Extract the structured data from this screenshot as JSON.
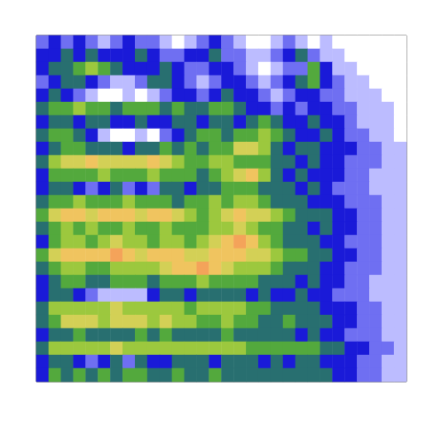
{
  "chart_data": {
    "type": "heatmap",
    "tick_labels": false,
    "grid": false,
    "cells": [
      [
        2,
        3,
        2,
        3,
        2,
        1,
        2,
        3,
        2,
        2,
        1,
        0,
        1,
        2,
        3,
        2,
        1,
        0,
        0,
        1,
        2,
        1,
        0,
        1,
        0,
        0,
        0,
        0,
        0,
        0
      ],
      [
        3,
        3,
        4,
        3,
        4,
        3,
        3,
        3,
        4,
        3,
        2,
        2,
        3,
        3,
        4,
        2,
        2,
        1,
        1,
        2,
        3,
        4,
        2,
        1,
        1,
        0,
        0,
        0,
        0,
        0
      ],
      [
        3,
        4,
        4,
        5,
        6,
        5,
        4,
        3,
        3,
        3,
        4,
        3,
        2,
        2,
        3,
        3,
        2,
        1,
        0,
        1,
        2,
        2,
        5,
        3,
        1,
        1,
        0,
        0,
        0,
        0
      ],
      [
        2,
        3,
        4,
        4,
        3,
        2,
        1,
        1,
        2,
        4,
        4,
        3,
        2,
        1,
        2,
        3,
        3,
        2,
        1,
        2,
        3,
        4,
        5,
        3,
        2,
        1,
        1,
        0,
        0,
        0
      ],
      [
        3,
        4,
        3,
        2,
        1,
        0,
        0,
        1,
        0,
        1,
        2,
        3,
        3,
        2,
        3,
        4,
        3,
        3,
        2,
        1,
        2,
        3,
        3,
        2,
        2,
        1,
        1,
        1,
        0,
        0
      ],
      [
        4,
        5,
        5,
        6,
        5,
        5,
        4,
        5,
        5,
        5,
        4,
        5,
        4,
        4,
        5,
        5,
        4,
        3,
        3,
        2,
        3,
        2,
        3,
        3,
        2,
        2,
        1,
        1,
        1,
        0
      ],
      [
        3,
        4,
        4,
        3,
        4,
        4,
        3,
        3,
        4,
        3,
        3,
        4,
        4,
        3,
        4,
        4,
        3,
        4,
        5,
        4,
        3,
        3,
        4,
        3,
        3,
        2,
        1,
        1,
        1,
        0
      ],
      [
        4,
        5,
        5,
        4,
        3,
        1,
        0,
        0,
        1,
        0,
        2,
        3,
        4,
        5,
        5,
        4,
        5,
        5,
        6,
        5,
        4,
        3,
        3,
        4,
        3,
        2,
        2,
        1,
        1,
        0
      ],
      [
        3,
        4,
        5,
        5,
        4,
        4,
        4,
        3,
        4,
        4,
        5,
        4,
        5,
        4,
        5,
        5,
        7,
        7,
        6,
        4,
        3,
        4,
        4,
        3,
        3,
        3,
        2,
        2,
        1,
        1
      ],
      [
        4,
        6,
        7,
        7,
        8,
        7,
        7,
        7,
        7,
        8,
        7,
        6,
        5,
        5,
        6,
        6,
        5,
        5,
        5,
        4,
        4,
        3,
        4,
        3,
        3,
        2,
        2,
        2,
        1,
        1
      ],
      [
        3,
        5,
        5,
        5,
        5,
        6,
        5,
        5,
        5,
        6,
        5,
        5,
        5,
        4,
        5,
        6,
        7,
        8,
        6,
        4,
        3,
        4,
        3,
        3,
        3,
        2,
        2,
        1,
        1,
        1
      ],
      [
        3,
        4,
        4,
        3,
        2,
        3,
        4,
        2,
        3,
        2,
        4,
        4,
        3,
        4,
        4,
        5,
        5,
        5,
        4,
        4,
        4,
        3,
        4,
        3,
        2,
        2,
        2,
        1,
        1,
        1
      ],
      [
        4,
        5,
        5,
        6,
        5,
        5,
        5,
        6,
        5,
        5,
        5,
        4,
        5,
        5,
        6,
        5,
        6,
        6,
        5,
        4,
        4,
        4,
        3,
        3,
        3,
        2,
        2,
        2,
        1,
        1
      ],
      [
        5,
        7,
        8,
        8,
        7,
        8,
        8,
        8,
        7,
        8,
        8,
        7,
        6,
        5,
        6,
        7,
        8,
        7,
        7,
        6,
        5,
        4,
        4,
        4,
        3,
        3,
        2,
        2,
        1,
        1
      ],
      [
        4,
        5,
        6,
        5,
        6,
        5,
        5,
        6,
        5,
        5,
        6,
        5,
        5,
        5,
        6,
        6,
        7,
        6,
        5,
        5,
        4,
        4,
        3,
        4,
        3,
        3,
        2,
        2,
        1,
        1
      ],
      [
        3,
        5,
        6,
        6,
        5,
        6,
        7,
        6,
        6,
        5,
        6,
        6,
        5,
        6,
        7,
        8,
        9,
        8,
        6,
        5,
        4,
        4,
        4,
        3,
        3,
        2,
        2,
        2,
        1,
        1
      ],
      [
        5,
        7,
        8,
        8,
        8,
        8,
        9,
        8,
        7,
        8,
        8,
        8,
        7,
        7,
        8,
        8,
        8,
        7,
        7,
        6,
        5,
        5,
        4,
        4,
        3,
        3,
        2,
        2,
        1,
        1
      ],
      [
        4,
        5,
        6,
        6,
        5,
        5,
        6,
        6,
        6,
        6,
        7,
        8,
        8,
        9,
        8,
        7,
        6,
        6,
        6,
        5,
        4,
        4,
        4,
        3,
        3,
        2,
        2,
        2,
        1,
        1
      ],
      [
        3,
        4,
        5,
        5,
        4,
        4,
        5,
        5,
        5,
        4,
        5,
        5,
        5,
        6,
        5,
        5,
        5,
        5,
        4,
        4,
        4,
        3,
        4,
        3,
        3,
        2,
        2,
        1,
        1,
        1
      ],
      [
        3,
        4,
        4,
        3,
        2,
        1,
        1,
        1,
        1,
        3,
        4,
        4,
        3,
        4,
        4,
        4,
        4,
        3,
        4,
        3,
        3,
        4,
        3,
        3,
        2,
        2,
        2,
        1,
        1,
        1
      ],
      [
        4,
        6,
        6,
        6,
        6,
        6,
        7,
        6,
        6,
        6,
        6,
        6,
        5,
        6,
        6,
        6,
        6,
        5,
        5,
        4,
        4,
        4,
        4,
        3,
        3,
        3,
        2,
        2,
        1,
        1
      ],
      [
        4,
        5,
        7,
        7,
        7,
        6,
        7,
        7,
        7,
        6,
        7,
        6,
        6,
        5,
        5,
        6,
        5,
        5,
        4,
        4,
        5,
        4,
        4,
        4,
        3,
        3,
        2,
        2,
        1,
        1
      ],
      [
        3,
        4,
        4,
        5,
        4,
        4,
        4,
        4,
        5,
        4,
        5,
        4,
        4,
        4,
        4,
        5,
        4,
        4,
        4,
        4,
        4,
        3,
        4,
        3,
        3,
        2,
        2,
        2,
        1,
        1
      ],
      [
        4,
        6,
        6,
        6,
        6,
        6,
        7,
        6,
        6,
        6,
        6,
        6,
        6,
        6,
        6,
        6,
        6,
        5,
        5,
        5,
        5,
        5,
        5,
        4,
        4,
        3,
        3,
        2,
        2,
        1
      ],
      [
        3,
        4,
        4,
        3,
        2,
        3,
        4,
        2,
        4,
        3,
        3,
        4,
        4,
        4,
        3,
        4,
        4,
        4,
        3,
        4,
        3,
        4,
        4,
        3,
        3,
        3,
        2,
        2,
        1,
        1
      ],
      [
        3,
        5,
        4,
        5,
        4,
        5,
        4,
        5,
        5,
        4,
        4,
        5,
        4,
        4,
        5,
        4,
        4,
        4,
        4,
        4,
        4,
        4,
        4,
        4,
        3,
        3,
        2,
        2,
        1,
        1
      ]
    ]
  }
}
